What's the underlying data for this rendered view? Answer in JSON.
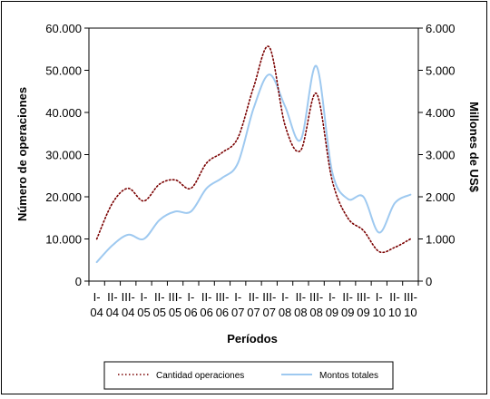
{
  "chart_data": {
    "type": "line",
    "title": "",
    "xlabel": "Períodos",
    "ylabel_left": "Número de operaciones",
    "ylabel_right": "Millones de US$",
    "y_left_lim": [
      0,
      60000
    ],
    "y_right_lim": [
      0,
      6000
    ],
    "y_left_ticks": [
      "0",
      "10.000",
      "20.000",
      "30.000",
      "40.000",
      "50.000",
      "60.000"
    ],
    "y_right_ticks": [
      "0",
      "1.000",
      "2.000",
      "3.000",
      "4.000",
      "5.000",
      "6.000"
    ],
    "x_tick_labels": [
      {
        "top": "I-",
        "bottom": "04"
      },
      {
        "top": "II-",
        "bottom": "04"
      },
      {
        "top": "III-",
        "bottom": "04"
      },
      {
        "top": "I-",
        "bottom": "05"
      },
      {
        "top": "II-",
        "bottom": "05"
      },
      {
        "top": "III-",
        "bottom": "05"
      },
      {
        "top": "I-",
        "bottom": "06"
      },
      {
        "top": "II-",
        "bottom": "06"
      },
      {
        "top": "III-",
        "bottom": "06"
      },
      {
        "top": "I-",
        "bottom": "07"
      },
      {
        "top": "II-",
        "bottom": "07"
      },
      {
        "top": "III-",
        "bottom": "07"
      },
      {
        "top": "I-",
        "bottom": "08"
      },
      {
        "top": "II-",
        "bottom": "08"
      },
      {
        "top": "III-",
        "bottom": "08"
      },
      {
        "top": "I-",
        "bottom": "09"
      },
      {
        "top": "II-",
        "bottom": "09"
      },
      {
        "top": "III-",
        "bottom": "09"
      },
      {
        "top": "I-",
        "bottom": "10"
      },
      {
        "top": "II-",
        "bottom": "10"
      },
      {
        "top": "III-",
        "bottom": "10"
      }
    ],
    "series": [
      {
        "name": "Cantidad operaciones",
        "axis": "left",
        "color": "#7a0000",
        "values": [
          10000,
          18500,
          22000,
          19000,
          23000,
          24000,
          22000,
          28000,
          30500,
          34000,
          46000,
          55500,
          37000,
          31000,
          44500,
          24000,
          15000,
          12000,
          7000,
          8000,
          10000
        ]
      },
      {
        "name": "Montos totales",
        "axis": "right",
        "color": "#9ec9f0",
        "values": [
          450,
          850,
          1100,
          1000,
          1450,
          1650,
          1650,
          2200,
          2450,
          2800,
          4100,
          4900,
          4150,
          3350,
          5100,
          2600,
          1950,
          2000,
          1150,
          1850,
          2050
        ]
      }
    ],
    "legend_position": "bottom",
    "grid": false
  }
}
